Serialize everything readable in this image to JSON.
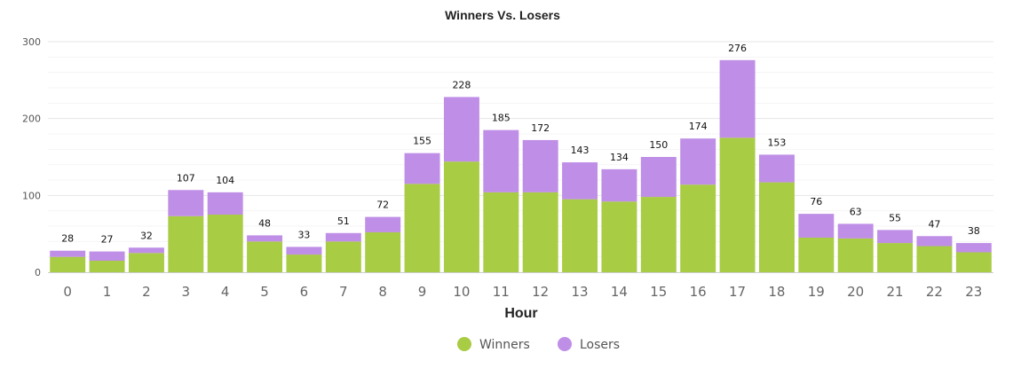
{
  "chart_data": {
    "type": "bar",
    "stacked": true,
    "title": "Winners Vs. Losers",
    "xlabel": "Hour",
    "ylabel": "",
    "ylim": [
      0,
      300
    ],
    "yticks": [
      0,
      100,
      200,
      300
    ],
    "grid": true,
    "legend_position": "bottom-center",
    "categories": [
      "0",
      "1",
      "2",
      "3",
      "4",
      "5",
      "6",
      "7",
      "8",
      "9",
      "10",
      "11",
      "12",
      "13",
      "14",
      "15",
      "16",
      "17",
      "18",
      "19",
      "20",
      "21",
      "22",
      "23"
    ],
    "series": [
      {
        "name": "Winners",
        "color": "#a8cc43",
        "values": [
          20,
          15,
          25,
          73,
          75,
          40,
          23,
          40,
          52,
          115,
          144,
          104,
          104,
          95,
          92,
          98,
          114,
          175,
          117,
          45,
          44,
          38,
          34,
          26
        ]
      },
      {
        "name": "Losers",
        "color": "#bf8ee6",
        "values": [
          8,
          12,
          7,
          34,
          29,
          8,
          10,
          11,
          20,
          40,
          84,
          81,
          68,
          48,
          42,
          52,
          60,
          101,
          36,
          31,
          19,
          17,
          13,
          12
        ]
      }
    ],
    "totals": [
      28,
      27,
      32,
      107,
      104,
      48,
      33,
      51,
      72,
      155,
      228,
      185,
      172,
      143,
      134,
      150,
      174,
      276,
      153,
      76,
      63,
      55,
      47,
      38
    ]
  }
}
